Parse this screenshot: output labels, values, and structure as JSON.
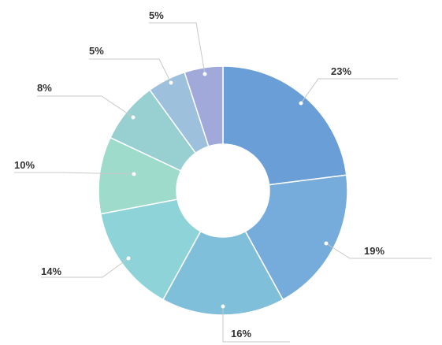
{
  "chart_data": {
    "type": "pie",
    "variant": "donut",
    "title": "",
    "slices": [
      {
        "value": 23,
        "label": "23%",
        "color": "#6a9ed6"
      },
      {
        "value": 19,
        "label": "19%",
        "color": "#76acdb"
      },
      {
        "value": 16,
        "label": "16%",
        "color": "#80bfd9"
      },
      {
        "value": 14,
        "label": "14%",
        "color": "#8ed3d8"
      },
      {
        "value": 10,
        "label": "10%",
        "color": "#9edbcb"
      },
      {
        "value": 8,
        "label": "8%",
        "color": "#98d0d2"
      },
      {
        "value": 5,
        "label": "5%",
        "color": "#9dc0dd"
      },
      {
        "value": 5,
        "label": "5%",
        "color": "#a1a9da"
      }
    ],
    "legend": "none"
  }
}
